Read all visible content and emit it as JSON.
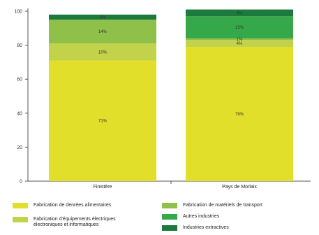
{
  "chart_data": {
    "type": "bar",
    "stacked": true,
    "categories": [
      "Finistère",
      "Pays de Morlaix"
    ],
    "ylim": [
      0,
      100
    ],
    "yticks": [
      0,
      20,
      40,
      60,
      80,
      100
    ],
    "series": [
      {
        "name": "Fabrication de denrées alimentaires",
        "color": "#e2df2a",
        "values": [
          71,
          79
        ],
        "labels": [
          "71%",
          "79%"
        ]
      },
      {
        "name": "Fabrication d'équipements électriques\nélectroniques et informatiques",
        "color": "#c2d24a",
        "values": [
          10,
          4
        ],
        "labels": [
          "10%",
          "4%"
        ]
      },
      {
        "name": "Fabrication de matériels de transport",
        "color": "#8fc04a",
        "values": [
          14,
          1
        ],
        "labels": [
          "14%",
          "1%"
        ]
      },
      {
        "name": "Autres industries",
        "color": "#35a84a",
        "values": [
          0,
          13
        ],
        "labels": [
          "",
          "13%"
        ]
      },
      {
        "name": "Industries extractives",
        "color": "#1b7a3c",
        "values": [
          3,
          4
        ],
        "labels": [
          "3%",
          "4%"
        ]
      }
    ],
    "legend_position": "bottom",
    "grid": false
  }
}
